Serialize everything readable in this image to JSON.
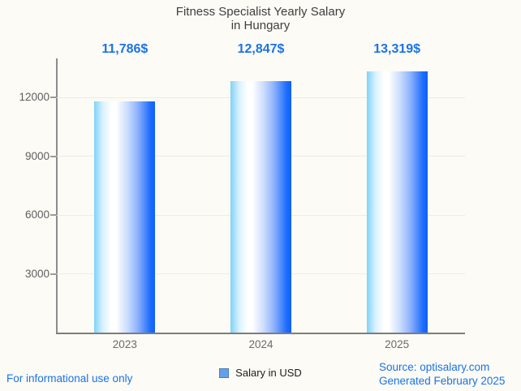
{
  "title": {
    "line1": "Fitness Specialist Yearly Salary",
    "line2": "in Hungary"
  },
  "legend": {
    "label": "Salary in USD",
    "swatch_color": "#63a0e8",
    "swatch_border": "#4a7dbd"
  },
  "footer": {
    "disclaimer": "For informational use only",
    "source": "Source: optisalary.com",
    "generated": "Generated February 2025"
  },
  "colors": {
    "background": "#fcfbf5",
    "title_text": "#3e3e3e",
    "axis_text": "#5e5e5e",
    "accent_blue": "#1a73e8",
    "gridline": "#ececea",
    "axis_line": "#8c8c8c",
    "bar_gradient_left": "#7fd2f9",
    "bar_gradient_mid": "#ffffff",
    "bar_gradient_right": "#0d61fa"
  },
  "chart_data": {
    "type": "bar",
    "title": "Fitness Specialist Yearly Salary in Hungary",
    "categories": [
      "2023",
      "2024",
      "2025"
    ],
    "values": [
      11786,
      12847,
      13319
    ],
    "value_labels": [
      "11,786$",
      "12,847$",
      "13,319$"
    ],
    "series_name": "Salary in USD",
    "xlabel": "",
    "ylabel": "",
    "ylim": [
      0,
      14000
    ],
    "yticks": [
      3000,
      6000,
      9000,
      12000
    ],
    "grid": true,
    "legend_position": "bottom"
  }
}
